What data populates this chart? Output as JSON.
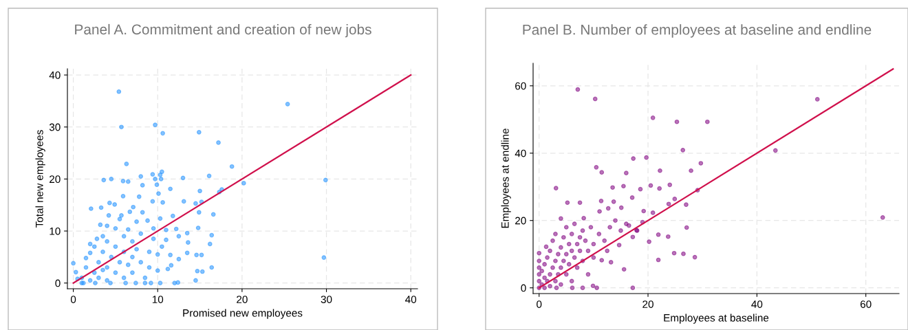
{
  "chart_data": [
    {
      "type": "scatter",
      "title": "Panel A. Commitment and creation of new jobs",
      "xlabel": "Promised new employees",
      "ylabel": "Total new employees",
      "xlim": [
        -0.7,
        40.8
      ],
      "ylim": [
        -1.1,
        41.2
      ],
      "xticks": [
        0,
        10,
        20,
        30,
        40
      ],
      "yticks": [
        0,
        10,
        20,
        30,
        40
      ],
      "grid": true,
      "series": [
        {
          "marker": "circle",
          "color": "#1e90ff",
          "x": [
            5.4,
            25.4,
            5.7,
            9.7,
            10.6,
            14.9,
            17.2,
            6.3,
            18.8,
            29.9,
            20.2,
            29.7,
            3.6,
            4.5,
            5.9,
            6.5,
            8.0,
            9.4,
            9.7,
            10.3,
            10.5,
            10.4,
            13.0,
            16.1,
            8.2,
            9.9,
            11.5,
            15.0,
            17.6,
            17.3,
            5.9,
            7.8,
            10.1,
            2.1,
            3.3,
            4.3,
            4.9,
            7.1,
            9.4,
            10.6,
            13.1,
            14.5,
            15.2,
            16.6,
            14.9,
            11.8,
            10.3,
            5.7,
            6.7,
            8.2,
            8.8,
            13.5,
            14.8,
            16.4,
            16.2,
            13.6,
            13.5,
            12.5,
            12.2,
            14.6,
            15.2,
            16.4,
            14.7,
            15.3,
            14.5,
            12.0,
            12.4,
            10.3,
            9.2,
            0,
            0.3,
            1.0,
            2.6,
            4.4,
            6.2,
            7.4,
            8.5,
            11.2,
            11.6,
            12.5,
            11.5,
            1,
            1.5,
            2,
            2,
            2.5,
            2.5,
            3,
            3,
            3.5,
            3.5,
            3.5,
            4,
            4,
            4,
            4,
            4.5,
            5,
            5,
            5,
            5.5,
            5.5,
            6,
            6,
            6,
            6.5,
            6.5,
            7,
            7,
            7,
            7.5,
            7.5,
            8,
            8,
            8.5,
            9,
            9,
            9.5,
            9.5,
            10,
            10,
            10.5,
            11,
            11,
            1.5,
            2,
            2.8,
            3.2,
            4.2,
            1.2,
            0.5
          ],
          "values": [
            36.8,
            34.4,
            30.0,
            30.4,
            28.8,
            29.0,
            27.0,
            22.9,
            22.4,
            19.8,
            19.2,
            4.9,
            19.8,
            20.0,
            19.6,
            19.5,
            20.5,
            20.9,
            20.0,
            20.8,
            21.4,
            20.0,
            20.2,
            20.6,
            18.8,
            18.9,
            18.1,
            17.7,
            18.0,
            17.5,
            16.7,
            16.6,
            17.2,
            14.3,
            14.5,
            15.4,
            15.1,
            14.6,
            15.7,
            15.5,
            15.7,
            15.3,
            15.6,
            13.2,
            13.6,
            12.9,
            12.4,
            13.0,
            13.7,
            13.6,
            12.0,
            9.6,
            10.6,
            9.2,
            7.5,
            7.8,
            5.8,
            9.0,
            10.4,
            5.4,
            5.4,
            3.0,
            2.3,
            2.2,
            0.5,
            0,
            0.1,
            0,
            0,
            3.8,
            2.1,
            0,
            0,
            0,
            0,
            0,
            0,
            2.7,
            3.4,
            4.6,
            5.4,
            1,
            3,
            0.5,
            5.8,
            2,
            7,
            4,
            1,
            9,
            6,
            2.5,
            11,
            8,
            3,
            0.5,
            5,
            10.5,
            7,
            2,
            12.3,
            4,
            9,
            6,
            1,
            10.3,
            3.5,
            8,
            5,
            2,
            11.8,
            6.5,
            4,
            9.5,
            1,
            6,
            3,
            8.5,
            10.5,
            5.5,
            2.4,
            7,
            10.2,
            8.3,
            4.8,
            7.5,
            8.5,
            11.2,
            13,
            0,
            0.8
          ]
        },
        {
          "type": "line",
          "color": "#d0104c",
          "x": [
            0,
            40
          ],
          "values": [
            0,
            40
          ]
        }
      ]
    },
    {
      "type": "scatter",
      "title": "Panel B. Number of employees at baseline and endline",
      "xlabel": "Employees at baseline",
      "ylabel": "Employees at endline",
      "xlim": [
        -1.1,
        66.1
      ],
      "ylim": [
        -1.7,
        66.7
      ],
      "xticks": [
        0,
        20,
        40,
        60
      ],
      "yticks": [
        0,
        20,
        40,
        60
      ],
      "grid": true,
      "series": [
        {
          "marker": "circle",
          "color": "#800080",
          "x": [
            7.1,
            10.3,
            51.1,
            20.9,
            25.3,
            30.9,
            26.4,
            43.4,
            17.3,
            19.7,
            29.7,
            10.5,
            22.2,
            27.9,
            11.5,
            16.0,
            3.1,
            13.5,
            15.5,
            20.5,
            22.1,
            24.0,
            18.6,
            29.1,
            5.2,
            7.5,
            11.4,
            13.7,
            17.1,
            24.9,
            27.0,
            23.8,
            63.1,
            27.1,
            23.7,
            21.9,
            20.2,
            24.8,
            26.5,
            28.6,
            21.9,
            15.6,
            17.2,
            4.0,
            8.2,
            11.1,
            12.7,
            15.1,
            19.2,
            20.9,
            17.9,
            17.2,
            14.7,
            13.2,
            9.9,
            10.6,
            8.0,
            6.1,
            3.2,
            1.3,
            0,
            0,
            0,
            0,
            0,
            0,
            0.5,
            0.5,
            1,
            1,
            1,
            1.5,
            1.5,
            2,
            2,
            2,
            2.5,
            2.5,
            3,
            3,
            3,
            3.5,
            3.5,
            4,
            4,
            4,
            4.5,
            4.5,
            5,
            5,
            5,
            5.5,
            5.5,
            6,
            6,
            6,
            6.5,
            6.5,
            7,
            7,
            7.5,
            7.5,
            8,
            8,
            8.5,
            9,
            9,
            9.5,
            10,
            10,
            11,
            11.5,
            12,
            12.5,
            13,
            14,
            15,
            16,
            16.5,
            18,
            19
          ],
          "values": [
            58.9,
            56.1,
            56.0,
            50.5,
            49.3,
            49.3,
            40.9,
            40.8,
            38.4,
            38.7,
            37.0,
            35.8,
            34.8,
            34.8,
            34.3,
            34.1,
            29.6,
            29.8,
            30.2,
            30.4,
            29.5,
            30.6,
            29.3,
            29.0,
            25.3,
            25.3,
            25.8,
            25.6,
            26.8,
            26.4,
            24.7,
            24.9,
            20.9,
            17.9,
            15.2,
            15.8,
            13.7,
            10.3,
            10.1,
            9.1,
            8.3,
            5.5,
            0,
            20.6,
            20.7,
            22.7,
            23.6,
            23.8,
            22.8,
            22.3,
            17.1,
            15.1,
            12.7,
            7.6,
            0.6,
            0,
            0,
            0,
            0,
            12.2,
            10.3,
            0,
            2,
            4,
            6,
            8,
            1,
            5,
            0,
            3,
            7,
            2,
            9,
            0.5,
            4,
            11,
            6,
            14,
            2,
            8,
            16,
            10,
            4,
            12,
            6,
            1,
            15,
            8,
            10,
            4,
            18,
            13,
            7,
            11,
            2,
            16,
            9,
            19,
            13,
            6,
            15,
            11,
            8,
            17,
            14,
            11,
            4,
            18,
            13,
            9,
            16,
            8.2,
            14,
            11,
            18,
            20,
            17,
            19,
            18.5,
            17,
            19.5
          ]
        },
        {
          "type": "line",
          "color": "#d0104c",
          "x": [
            0,
            65
          ],
          "values": [
            0,
            65
          ]
        }
      ]
    }
  ]
}
